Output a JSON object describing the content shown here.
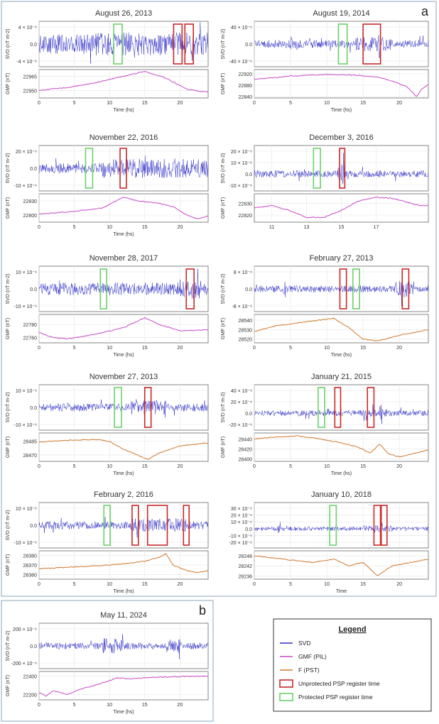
{
  "figure": {
    "label_a": "a",
    "label_b": "b"
  },
  "colors": {
    "svd": "#3030c8",
    "gmf_pil": "#c84ac8",
    "f_pst": "#d07a30",
    "unprotected": "#c82828",
    "protected": "#6cd06c",
    "frame": "#9fb4c8"
  },
  "legend": {
    "title": "Legend",
    "items": [
      {
        "label": "SVD",
        "kind": "line",
        "color_key": "svd"
      },
      {
        "label": "GMF (PIL)",
        "kind": "line",
        "color_key": "gmf_pil"
      },
      {
        "label": "F (PST)",
        "kind": "line",
        "color_key": "f_pst"
      },
      {
        "label": "Unprotected PSP register time",
        "kind": "box",
        "color_key": "unprotected"
      },
      {
        "label": "Protected PSP register time",
        "kind": "box",
        "color_key": "protected"
      }
    ]
  },
  "chart_data": [
    {
      "type": "line",
      "title": "August 26, 2013",
      "xlabel": "Time (hs)",
      "xlim": [
        0,
        24
      ],
      "xticks": [
        0,
        5,
        10,
        15,
        20
      ],
      "svd": {
        "ylabel": "SVD (nT m-2)",
        "yticks": [
          "4 × 10⁻⁶",
          "0.0",
          "-4 × 10⁻⁶"
        ],
        "amplitude": 0.85,
        "seed": 1,
        "bursts": [
          [
            8,
            24,
            1.2
          ]
        ]
      },
      "gmf": {
        "ylabel": "GMF (nT)",
        "source": "PIL",
        "yticks": [
          "22965",
          "22950"
        ],
        "ylim": [
          22942,
          22972
        ],
        "curve": [
          [
            0,
            22950
          ],
          [
            4,
            22953
          ],
          [
            8,
            22958
          ],
          [
            12,
            22965
          ],
          [
            15,
            22970
          ],
          [
            18,
            22963
          ],
          [
            21,
            22951
          ],
          [
            24,
            22948
          ]
        ]
      },
      "markers": [
        {
          "kind": "protected",
          "start": 10.6,
          "end": 11.8
        },
        {
          "kind": "unprotected",
          "start": 19.1,
          "end": 20.3
        },
        {
          "kind": "unprotected",
          "start": 20.7,
          "end": 21.9
        }
      ]
    },
    {
      "type": "line",
      "title": "August 19, 2014",
      "xlabel": "Time (hs)",
      "xlim": [
        0,
        24
      ],
      "xticks": [
        0,
        5,
        10,
        15,
        20
      ],
      "svd": {
        "ylabel": "SVD (nT m-2)",
        "yticks": [
          "40 × 10⁻⁶",
          "0.0",
          "-40 × 10⁻⁶"
        ],
        "amplitude": 0.35,
        "seed": 2,
        "bursts": [
          [
            14,
            19,
            1.8
          ],
          [
            5,
            5.3,
            2.2
          ],
          [
            17,
            17.3,
            2.0
          ]
        ]
      },
      "gmf": {
        "ylabel": "GMF (nT)",
        "source": "PIL",
        "yticks": [
          "22920",
          "22880",
          "22840"
        ],
        "ylim": [
          22835,
          22935
        ],
        "curve": [
          [
            0,
            22900
          ],
          [
            5,
            22912
          ],
          [
            10,
            22918
          ],
          [
            14,
            22915
          ],
          [
            17,
            22908
          ],
          [
            19,
            22895
          ],
          [
            21,
            22875
          ],
          [
            22.4,
            22840
          ],
          [
            23,
            22865
          ],
          [
            24,
            22882
          ]
        ]
      },
      "markers": [
        {
          "kind": "protected",
          "start": 11.6,
          "end": 12.8
        },
        {
          "kind": "unprotected",
          "start": 15,
          "end": 17.4
        }
      ]
    },
    {
      "type": "line",
      "title": "November 22, 2016",
      "xlabel": "Time (hs)",
      "xlim": [
        0,
        24
      ],
      "xticks": [
        0,
        5,
        10,
        15,
        20
      ],
      "svd": {
        "ylabel": "SVD (nT m-2)",
        "yticks": [
          "20 × 10⁻⁶",
          "0.0",
          "-10 × 10⁻⁶"
        ],
        "amplitude": 0.45,
        "seed": 3,
        "bursts": [
          [
            9,
            24,
            1.9
          ]
        ]
      },
      "gmf": {
        "ylabel": "GMF (nT)",
        "source": "PIL",
        "yticks": [
          "22830",
          "22800"
        ],
        "ylim": [
          22785,
          22845
        ],
        "curve": [
          [
            0,
            22802
          ],
          [
            5,
            22808
          ],
          [
            9,
            22815
          ],
          [
            12,
            22838
          ],
          [
            14,
            22830
          ],
          [
            17,
            22825
          ],
          [
            19,
            22818
          ],
          [
            21,
            22800
          ],
          [
            22.5,
            22792
          ],
          [
            24,
            22798
          ]
        ]
      },
      "markers": [
        {
          "kind": "protected",
          "start": 6.6,
          "end": 7.6
        },
        {
          "kind": "unprotected",
          "start": 11.5,
          "end": 12.4
        }
      ]
    },
    {
      "type": "line",
      "title": "December 3, 2016",
      "xlabel": "",
      "xlim": [
        10,
        20
      ],
      "xticks": [
        11,
        13,
        15,
        17
      ],
      "svd": {
        "ylabel": "SVD (nT m-2)",
        "yticks": [
          "20 × 10⁻⁶",
          "10 × 10⁻⁶",
          "0.0",
          "-10 × 10⁻⁶"
        ],
        "amplitude": 0.3,
        "seed": 4,
        "bursts": [
          [
            14.8,
            15.2,
            3.0
          ]
        ]
      },
      "gmf": {
        "ylabel": "GMF (nT)",
        "source": "PIL",
        "yticks": [
          "22830",
          "22820"
        ],
        "ylim": [
          22814,
          22838
        ],
        "curve": [
          [
            10,
            22826
          ],
          [
            11,
            22828
          ],
          [
            12,
            22824
          ],
          [
            13,
            22818
          ],
          [
            14,
            22818
          ],
          [
            15,
            22824
          ],
          [
            16,
            22832
          ],
          [
            17,
            22835
          ],
          [
            18,
            22834
          ],
          [
            19.5,
            22828
          ]
        ]
      },
      "markers": [
        {
          "kind": "protected",
          "start": 13.4,
          "end": 13.8
        },
        {
          "kind": "unprotected",
          "start": 14.9,
          "end": 15.2
        }
      ]
    },
    {
      "type": "line",
      "title": "November 28, 2017",
      "xlabel": "Time (hs)",
      "xlim": [
        0,
        24
      ],
      "xticks": [
        0,
        5,
        10,
        15,
        20
      ],
      "svd": {
        "ylabel": "SVD (nT m-2)",
        "yticks": [
          "10 × 10⁻⁶",
          "0.0",
          "-10 × 10⁻⁶"
        ],
        "amplitude": 0.55,
        "seed": 5,
        "bursts": [
          [
            20,
            23,
            1.6
          ]
        ]
      },
      "gmf": {
        "ylabel": "GMF (nT)",
        "source": "PIL",
        "yticks": [
          "22780",
          "22760"
        ],
        "ylim": [
          22752,
          22795
        ],
        "curve": [
          [
            0,
            22768
          ],
          [
            2,
            22760
          ],
          [
            4,
            22758
          ],
          [
            8,
            22765
          ],
          [
            12,
            22775
          ],
          [
            15,
            22790
          ],
          [
            17,
            22780
          ],
          [
            20,
            22770
          ],
          [
            24,
            22772
          ]
        ]
      },
      "markers": [
        {
          "kind": "protected",
          "start": 8.7,
          "end": 9.6
        },
        {
          "kind": "unprotected",
          "start": 20.9,
          "end": 22
        }
      ]
    },
    {
      "type": "line",
      "title": "February 27, 2013",
      "xlabel": "Time (hs)",
      "xlim": [
        0,
        24
      ],
      "xticks": [
        0,
        5,
        10,
        15,
        20
      ],
      "svd": {
        "ylabel": "SVD (nT m-2)",
        "yticks": [
          "8 × 10⁻⁶",
          "0.0",
          "-8 × 10⁻⁶"
        ],
        "amplitude": 0.3,
        "seed": 6,
        "bursts": [
          [
            19.5,
            22,
            2.4
          ],
          [
            4,
            4.3,
            2.5
          ]
        ]
      },
      "gmf": {
        "ylabel": "GMF (nT)",
        "source": "PST",
        "yticks": [
          "28540",
          "28530",
          "28520"
        ],
        "ylim": [
          28516,
          28546
        ],
        "curve": [
          [
            0,
            28528
          ],
          [
            3,
            28534
          ],
          [
            7,
            28538
          ],
          [
            11,
            28542
          ],
          [
            13,
            28532
          ],
          [
            15,
            28520
          ],
          [
            17,
            28518
          ],
          [
            20,
            28524
          ],
          [
            24,
            28530
          ]
        ]
      },
      "markers": [
        {
          "kind": "unprotected",
          "start": 11.8,
          "end": 12.7
        },
        {
          "kind": "protected",
          "start": 13.6,
          "end": 14.5
        },
        {
          "kind": "unprotected",
          "start": 20.4,
          "end": 21.3
        }
      ]
    },
    {
      "type": "line",
      "title": "November 27, 2013",
      "xlabel": "Time (hs)",
      "xlim": [
        0,
        24
      ],
      "xticks": [
        0,
        5,
        10,
        15,
        20
      ],
      "svd": {
        "ylabel": "SVD (nT m-2)",
        "yticks": [
          "10 × 10⁻⁶",
          "0.0",
          "-10 × 10⁻⁶"
        ],
        "amplitude": 0.35,
        "seed": 7,
        "bursts": [
          [
            13,
            18,
            1.8
          ]
        ]
      },
      "gmf": {
        "ylabel": "GMF (nT)",
        "source": "PST",
        "yticks": [
          "28485",
          "28470"
        ],
        "ylim": [
          28463,
          28494
        ],
        "curve": [
          [
            0,
            28484
          ],
          [
            4,
            28486
          ],
          [
            8,
            28487
          ],
          [
            10,
            28485
          ],
          [
            12,
            28476
          ],
          [
            14,
            28470
          ],
          [
            15.5,
            28465
          ],
          [
            17,
            28472
          ],
          [
            20,
            28480
          ],
          [
            24,
            28483
          ]
        ]
      },
      "markers": [
        {
          "kind": "protected",
          "start": 10.7,
          "end": 11.7
        },
        {
          "kind": "unprotected",
          "start": 15,
          "end": 15.9
        }
      ]
    },
    {
      "type": "line",
      "title": "January 21, 2015",
      "xlabel": "Time (hs)",
      "xlim": [
        0,
        24
      ],
      "xticks": [
        0,
        5,
        10,
        15,
        20
      ],
      "svd": {
        "ylabel": "SVD (nT m-2)",
        "yticks": [
          "40 × 10⁻⁶",
          "20 × 10⁻⁶",
          "0.0",
          "-20 × 10⁻⁶"
        ],
        "amplitude": 0.25,
        "seed": 8,
        "bursts": [
          [
            15,
            19,
            1.4
          ],
          [
            17.3,
            17.6,
            3.5
          ]
        ]
      },
      "gmf": {
        "ylabel": "GMF (nT)",
        "source": "PST",
        "yticks": [
          "28440",
          "28420",
          "28400"
        ],
        "ylim": [
          28395,
          28452
        ],
        "curve": [
          [
            0,
            28440
          ],
          [
            3,
            28444
          ],
          [
            6,
            28446
          ],
          [
            9,
            28440
          ],
          [
            12,
            28432
          ],
          [
            14,
            28425
          ],
          [
            16,
            28412
          ],
          [
            17.3,
            28430
          ],
          [
            18.5,
            28410
          ],
          [
            20,
            28404
          ],
          [
            24,
            28418
          ]
        ]
      },
      "markers": [
        {
          "kind": "protected",
          "start": 8.8,
          "end": 9.7
        },
        {
          "kind": "unprotected",
          "start": 11.1,
          "end": 11.9
        },
        {
          "kind": "unprotected",
          "start": 15.6,
          "end": 16.5
        }
      ]
    },
    {
      "type": "line",
      "title": "February 2, 2016",
      "xlabel": "Time (hs)",
      "xlim": [
        0,
        24
      ],
      "xticks": [
        0,
        5,
        10,
        15,
        20
      ],
      "svd": {
        "ylabel": "SVD (nT m-2)",
        "yticks": [
          "10 × 10⁻⁶",
          "0.0",
          "-10 × 10⁻⁶"
        ],
        "amplitude": 0.35,
        "seed": 9,
        "bursts": [
          [
            13,
            21,
            1.7
          ]
        ]
      },
      "gmf": {
        "ylabel": "GMF (nT)",
        "source": "PST",
        "yticks": [
          "28380",
          "28370",
          "28360"
        ],
        "ylim": [
          28355,
          28385
        ],
        "curve": [
          [
            0,
            28366
          ],
          [
            5,
            28368
          ],
          [
            10,
            28370
          ],
          [
            13,
            28372
          ],
          [
            15,
            28374
          ],
          [
            17,
            28378
          ],
          [
            18,
            28382
          ],
          [
            19,
            28370
          ],
          [
            21,
            28364
          ],
          [
            22.5,
            28362
          ],
          [
            24,
            28364
          ]
        ]
      },
      "markers": [
        {
          "kind": "protected",
          "start": 9.2,
          "end": 10.1
        },
        {
          "kind": "unprotected",
          "start": 13.2,
          "end": 14.1
        },
        {
          "kind": "unprotected",
          "start": 15.4,
          "end": 18.2
        },
        {
          "kind": "unprotected",
          "start": 20.5,
          "end": 21.3
        }
      ]
    },
    {
      "type": "line",
      "title": "January 10, 2018",
      "xlabel": "Time",
      "xlim": [
        0,
        24
      ],
      "xticks": [
        0,
        5,
        10,
        15,
        20
      ],
      "svd": {
        "ylabel": "",
        "yticks": [
          "30 × 10⁻⁶",
          "20 × 10⁻⁶",
          "10 × 10⁻⁶",
          "0.0",
          "-10 × 10⁻⁶",
          "-20 × 10⁻⁶"
        ],
        "amplitude": 0.18,
        "seed": 10,
        "bursts": [
          [
            15,
            19,
            1.6
          ],
          [
            3.3,
            3.6,
            3.5
          ]
        ]
      },
      "gmf": {
        "ylabel": "",
        "source": "PST",
        "yticks": [
          "28248",
          "28242",
          "28236"
        ],
        "ylim": [
          28234,
          28251
        ],
        "curve": [
          [
            0,
            28248
          ],
          [
            4,
            28246
          ],
          [
            8,
            28244
          ],
          [
            11,
            28246
          ],
          [
            13,
            28242
          ],
          [
            15,
            28244
          ],
          [
            16,
            28240
          ],
          [
            17,
            28236
          ],
          [
            19,
            28242
          ],
          [
            24,
            28246
          ]
        ]
      },
      "markers": [
        {
          "kind": "protected",
          "start": 10.4,
          "end": 11.3
        },
        {
          "kind": "unprotected",
          "start": 16.5,
          "end": 17.4
        },
        {
          "kind": "unprotected",
          "start": 17.5,
          "end": 18.3
        }
      ]
    },
    {
      "type": "line",
      "title": "May 11, 2024",
      "xlabel": "Time (hs)",
      "xlim": [
        0,
        24
      ],
      "xticks": [
        0,
        5,
        10,
        15,
        20
      ],
      "svd": {
        "ylabel": "SVD (nT m-2)",
        "yticks": [
          "200 × 10⁻⁶",
          "0.0",
          "-200 × 10⁻⁶"
        ],
        "amplitude": 0.3,
        "seed": 11,
        "bursts": [
          [
            9,
            12,
            2.2
          ],
          [
            18,
            20,
            2.0
          ]
        ]
      },
      "gmf": {
        "ylabel": "GMF (nT)",
        "source": "PIL",
        "yticks": [
          "22400",
          "22200"
        ],
        "ylim": [
          22140,
          22450
        ],
        "curve": [
          [
            0,
            22220
          ],
          [
            1,
            22180
          ],
          [
            2,
            22240
          ],
          [
            4,
            22200
          ],
          [
            6,
            22260
          ],
          [
            8,
            22300
          ],
          [
            10,
            22350
          ],
          [
            11,
            22380
          ],
          [
            13,
            22370
          ],
          [
            16,
            22385
          ],
          [
            20,
            22395
          ],
          [
            24,
            22400
          ]
        ]
      },
      "markers": []
    }
  ]
}
